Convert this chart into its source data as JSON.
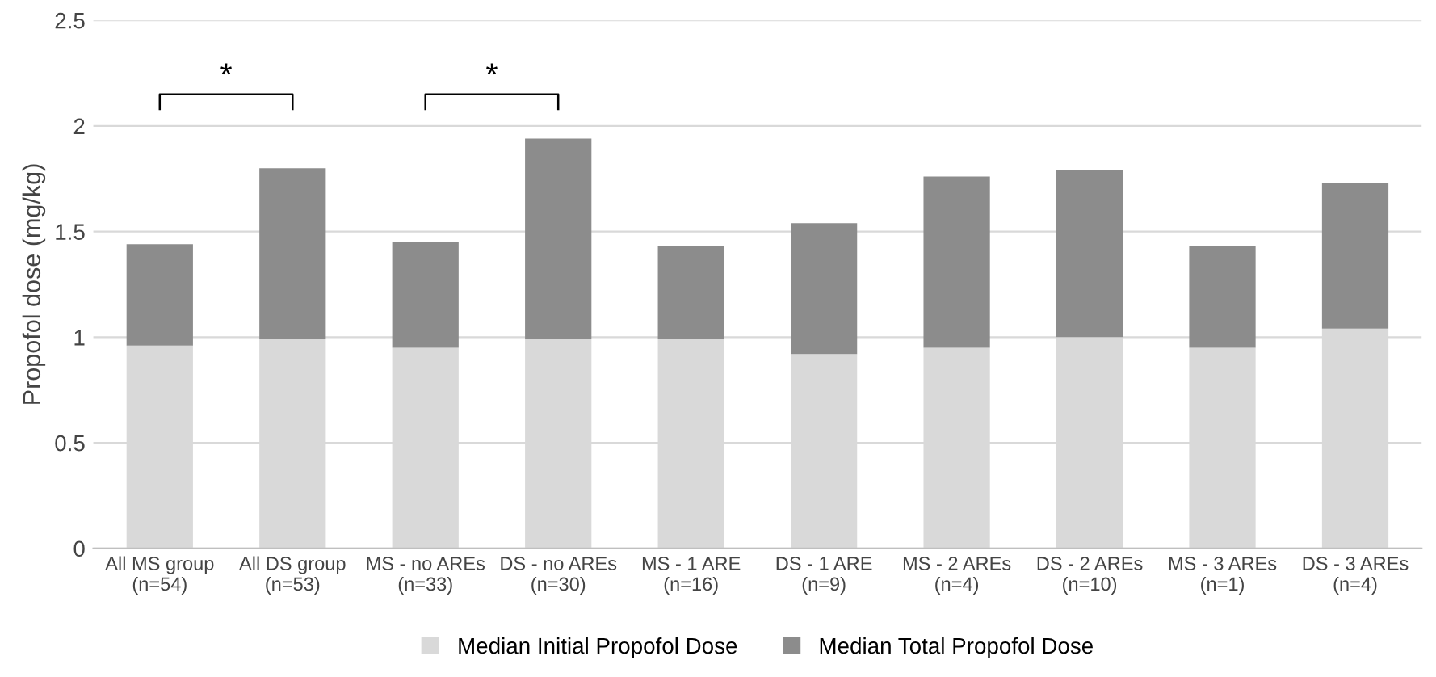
{
  "chart_data": {
    "type": "bar",
    "stacked": true,
    "ylabel": "Propofol dose (mg/kg)",
    "categories": [
      "All MS group\n(n=54)",
      "All DS group\n(n=53)",
      "MS - no AREs\n(n=33)",
      "DS - no AREs\n(n=30)",
      "MS - 1 ARE\n(n=16)",
      "DS - 1 ARE\n(n=9)",
      "MS - 2 AREs\n(n=4)",
      "DS - 2 AREs\n(n=10)",
      "MS - 3 AREs\n(n=1)",
      "DS - 3 AREs\n(n=4)"
    ],
    "series": [
      {
        "name": "Median Initial Propofol Dose",
        "color": "#d9d9d9",
        "values": [
          0.96,
          0.99,
          0.95,
          0.99,
          0.99,
          0.92,
          0.95,
          1.0,
          0.95,
          1.04
        ]
      },
      {
        "name": "Median Total Propofol Dose",
        "color": "#8c8c8c",
        "values": [
          0.48,
          0.81,
          0.5,
          0.95,
          0.44,
          0.62,
          0.81,
          0.79,
          0.48,
          0.69
        ]
      }
    ],
    "ylim": [
      0,
      2.5
    ],
    "yticks": [
      0,
      0.5,
      1,
      1.5,
      2,
      2.5
    ],
    "grid": "y",
    "legend": "bottom",
    "annotations": [
      "*",
      "*"
    ]
  }
}
